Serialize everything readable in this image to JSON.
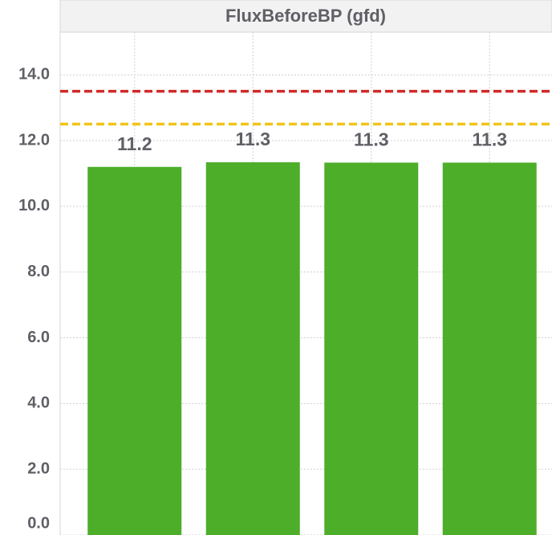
{
  "chart_data": {
    "type": "bar",
    "title": "FluxBeforeBP (gfd)",
    "categories": [
      null,
      null,
      null,
      null
    ],
    "values": [
      11.2,
      11.34,
      11.33,
      11.33
    ],
    "value_labels": [
      "11.2",
      "11.3",
      "11.3",
      "11.3"
    ],
    "color": "#4dae2a",
    "ylim": [
      0,
      15.3
    ],
    "yticks": [
      {
        "value": 0,
        "label": "0.0"
      },
      {
        "value": 2,
        "label": "2.0"
      },
      {
        "value": 4,
        "label": "4.0"
      },
      {
        "value": 6,
        "label": "6.0"
      },
      {
        "value": 8,
        "label": "8.0"
      },
      {
        "value": 10,
        "label": "10.0"
      },
      {
        "value": 12,
        "label": "12.0"
      },
      {
        "value": 14,
        "label": "14.0"
      }
    ],
    "grid": true,
    "reference_lines": [
      {
        "value": 13.5,
        "color": "#d12a2a"
      },
      {
        "value": 12.5,
        "color": "#f2c418"
      }
    ]
  }
}
